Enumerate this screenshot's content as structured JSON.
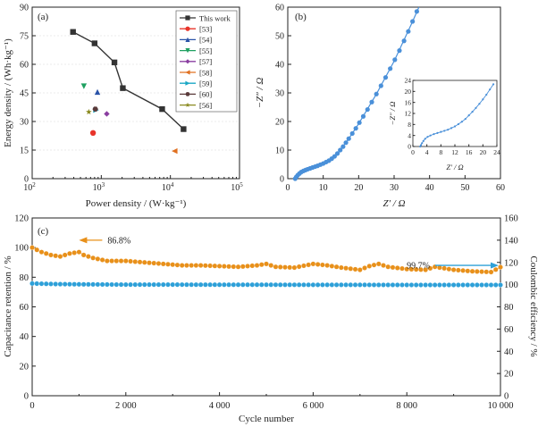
{
  "chart_data": [
    {
      "panel": "(a)",
      "type": "scatter",
      "xlabel": "Power density / (W·kg⁻¹)",
      "ylabel": "Energy density / (Wh·kg⁻¹)",
      "xscale": "log",
      "xlim": [
        100,
        100000
      ],
      "ylim": [
        0,
        90
      ],
      "xticks": [
        {
          "value": 100,
          "base": "10",
          "exp": "2"
        },
        {
          "value": 1000,
          "base": "10",
          "exp": "3"
        },
        {
          "value": 10000,
          "base": "10",
          "exp": "4"
        },
        {
          "value": 100000,
          "base": "10",
          "exp": "5"
        }
      ],
      "yticks": [
        0,
        15,
        30,
        45,
        60,
        75,
        90
      ],
      "legend_position": "top-right",
      "series": [
        {
          "name": "This work",
          "color": "#333333",
          "marker": "square",
          "line": true,
          "points": [
            [
              390,
              77
            ],
            [
              800,
              71
            ],
            [
              1550,
              61
            ],
            [
              2050,
              47.5
            ],
            [
              7600,
              36.5
            ],
            [
              15500,
              26
            ]
          ]
        },
        {
          "name": "[53]",
          "color": "#e8342a",
          "marker": "circle",
          "points": [
            [
              760,
              24
            ]
          ]
        },
        {
          "name": "[54]",
          "color": "#2a53a8",
          "marker": "triangle-up",
          "points": [
            [
              880,
              45.5
            ]
          ]
        },
        {
          "name": "[55]",
          "color": "#1fa060",
          "marker": "triangle-down",
          "points": [
            [
              560,
              48.5
            ]
          ]
        },
        {
          "name": "[57]",
          "color": "#8a3ea0",
          "marker": "diamond",
          "points": [
            [
              1200,
              34
            ]
          ]
        },
        {
          "name": "[58]",
          "color": "#e07020",
          "marker": "triangle-left",
          "points": [
            [
              11500,
              14.5
            ]
          ]
        },
        {
          "name": "[59]",
          "color": "#1aa7c4",
          "marker": "triangle-right",
          "points": [
            [
              840,
              36
            ]
          ]
        },
        {
          "name": "[60]",
          "color": "#5a3a3a",
          "marker": "hexagon",
          "points": [
            [
              820,
              36.5
            ]
          ]
        },
        {
          "name": "[56]",
          "color": "#8a8a20",
          "marker": "star",
          "points": [
            [
              660,
              35
            ]
          ]
        }
      ]
    },
    {
      "panel": "(b)",
      "type": "scatter",
      "xlabel": "Z′ / Ω",
      "ylabel": "−Z″ / Ω",
      "xlim": [
        0,
        60
      ],
      "ylim": [
        0,
        60
      ],
      "xticks": [
        0,
        10,
        20,
        30,
        40,
        50,
        60
      ],
      "yticks": [
        0,
        10,
        20,
        30,
        40,
        50,
        60
      ],
      "color": "#4a90d9",
      "points": [
        [
          2.1,
          0
        ],
        [
          2.4,
          0.6
        ],
        [
          2.8,
          1.2
        ],
        [
          3.3,
          1.8
        ],
        [
          3.8,
          2.3
        ],
        [
          4.4,
          2.7
        ],
        [
          5.0,
          3.0
        ],
        [
          5.6,
          3.3
        ],
        [
          6.3,
          3.6
        ],
        [
          7.0,
          3.9
        ],
        [
          7.7,
          4.2
        ],
        [
          8.4,
          4.5
        ],
        [
          9.2,
          4.9
        ],
        [
          10.0,
          5.3
        ],
        [
          10.8,
          5.8
        ],
        [
          11.6,
          6.3
        ],
        [
          12.4,
          7.0
        ],
        [
          13.2,
          7.8
        ],
        [
          14.0,
          8.8
        ],
        [
          14.8,
          10.0
        ],
        [
          15.6,
          11.2
        ],
        [
          16.4,
          12.6
        ],
        [
          17.2,
          14.0
        ],
        [
          18.2,
          15.8
        ],
        [
          19.2,
          17.6
        ],
        [
          20.2,
          19.6
        ],
        [
          21.3,
          21.8
        ],
        [
          22.5,
          24.2
        ],
        [
          23.7,
          26.8
        ],
        [
          25.0,
          29.6
        ],
        [
          26.3,
          32.5
        ],
        [
          27.6,
          35.4
        ],
        [
          28.9,
          38.5
        ],
        [
          30.2,
          41.6
        ],
        [
          31.5,
          44.8
        ],
        [
          32.8,
          48.2
        ],
        [
          34.0,
          51.5
        ],
        [
          35.2,
          55.0
        ],
        [
          36.4,
          58.5
        ]
      ],
      "line": [
        [
          2.1,
          0
        ],
        [
          3.2,
          1.8
        ],
        [
          5.0,
          3.0
        ],
        [
          8.0,
          4.3
        ],
        [
          11.0,
          6.0
        ],
        [
          14.0,
          8.8
        ],
        [
          17.0,
          13.6
        ],
        [
          20.0,
          19.2
        ],
        [
          25.0,
          29.6
        ],
        [
          30.0,
          41.1
        ],
        [
          35.0,
          54.4
        ],
        [
          37.0,
          60
        ]
      ],
      "inset": {
        "xlabel": "Z′ / Ω",
        "ylabel": "−Z″ / Ω",
        "xlim": [
          0,
          24
        ],
        "ylim": [
          0,
          24
        ],
        "xticks": [
          0,
          4,
          8,
          12,
          16,
          20,
          24
        ],
        "yticks": [
          0,
          4,
          8,
          12,
          16,
          20,
          24
        ],
        "points": [
          [
            2.1,
            0
          ],
          [
            2.3,
            0.5
          ],
          [
            2.6,
            1.2
          ],
          [
            3.0,
            2.0
          ],
          [
            3.5,
            2.8
          ],
          [
            4.2,
            3.5
          ],
          [
            5.0,
            4.0
          ],
          [
            6.0,
            4.5
          ],
          [
            7.0,
            4.9
          ],
          [
            8.0,
            5.3
          ],
          [
            9.0,
            5.7
          ],
          [
            10.0,
            6.1
          ],
          [
            11.0,
            6.7
          ],
          [
            12.0,
            7.3
          ],
          [
            13.0,
            8.1
          ],
          [
            14.0,
            9.0
          ],
          [
            15.0,
            10.0
          ],
          [
            16.0,
            11.3
          ],
          [
            17.0,
            12.6
          ],
          [
            18.0,
            14.0
          ],
          [
            19.0,
            15.5
          ],
          [
            20.0,
            17.1
          ],
          [
            21.0,
            18.8
          ],
          [
            22.0,
            20.7
          ],
          [
            23.0,
            22.6
          ]
        ]
      }
    },
    {
      "panel": "(c)",
      "type": "line",
      "xlabel": "Cycle number",
      "ylabel": "Capacitance retention / %",
      "y2label": "Coulombic efficiency / %",
      "xlim": [
        0,
        10000
      ],
      "ylim": [
        0,
        120
      ],
      "y2lim": [
        0,
        160
      ],
      "xticks": [
        0,
        2000,
        4000,
        6000,
        8000,
        10000
      ],
      "xtick_labels": [
        "0",
        "2 000",
        "4 000",
        "6 000",
        "8 000",
        "10 000"
      ],
      "yticks": [
        0,
        20,
        40,
        60,
        80,
        100,
        120
      ],
      "y2ticks": [
        0,
        20,
        40,
        60,
        80,
        100,
        120,
        140,
        160
      ],
      "series": [
        {
          "name": "Capacitance retention",
          "axis": "left",
          "color": "#e8901a",
          "x": [
            0,
            200,
            400,
            600,
            800,
            1000,
            1100,
            1300,
            1600,
            2000,
            2400,
            2800,
            3200,
            3600,
            4000,
            4400,
            4800,
            5000,
            5200,
            5600,
            6000,
            6300,
            6600,
            7000,
            7200,
            7400,
            7600,
            8000,
            8400,
            8600,
            9000,
            9400,
            9800,
            10000
          ],
          "values": [
            100,
            97,
            95,
            94,
            96,
            97,
            95,
            93,
            91,
            91,
            90,
            89,
            88,
            88,
            87.5,
            87,
            88,
            89,
            87,
            86.5,
            89,
            88,
            86.5,
            85,
            87.5,
            89,
            87,
            85.5,
            85,
            87,
            85,
            84,
            83.5,
            86.8
          ]
        },
        {
          "name": "Coulombic efficiency",
          "axis": "right",
          "color": "#2ea0d8",
          "x": [
            0,
            500,
            1000,
            2000,
            3000,
            4000,
            5000,
            6000,
            7000,
            8000,
            9000,
            10000
          ],
          "values": [
            101,
            100.5,
            100.3,
            100,
            100,
            99.9,
            99.9,
            99.8,
            99.8,
            99.7,
            99.7,
            99.7
          ]
        }
      ],
      "annotations": [
        {
          "text": "86.8%",
          "color": "#e8901a",
          "at": [
            1200,
            105
          ],
          "arrow": "left"
        },
        {
          "text": "99.7%",
          "color": "#2ea0d8",
          "at": [
            8300,
            88
          ],
          "arrow": "right"
        }
      ]
    }
  ]
}
